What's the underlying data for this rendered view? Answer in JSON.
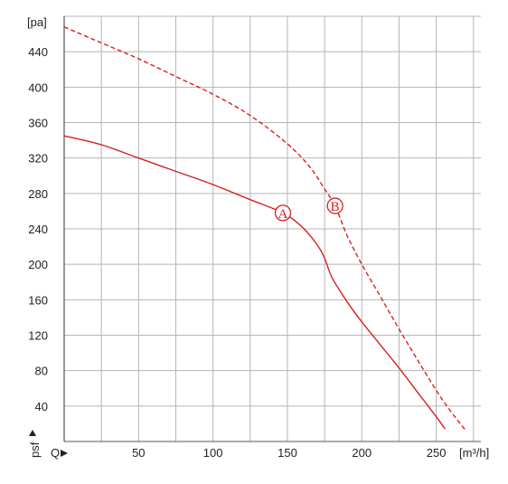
{
  "chart_data": {
    "type": "line",
    "y_unit": "[pa]",
    "x_unit": "[m³/h]",
    "y_axis_symbol": "psf",
    "x_axis_symbol": "Q",
    "xlim": [
      0,
      280
    ],
    "ylim": [
      0,
      480
    ],
    "x_ticks": [
      50,
      100,
      150,
      200,
      250
    ],
    "y_ticks": [
      40,
      80,
      120,
      160,
      200,
      240,
      280,
      320,
      360,
      400,
      440
    ],
    "x_grid": [
      0,
      25,
      50,
      75,
      100,
      125,
      150,
      175,
      200,
      225,
      250,
      275
    ],
    "y_grid": [
      40,
      80,
      120,
      160,
      200,
      240,
      280,
      320,
      360,
      400,
      440,
      480
    ],
    "grid": true,
    "curve_color": "#d62020",
    "series": [
      {
        "name": "A",
        "style": "solid",
        "marker_at": [
          147,
          258
        ],
        "points": [
          [
            0,
            345
          ],
          [
            25,
            335
          ],
          [
            50,
            320
          ],
          [
            75,
            305
          ],
          [
            100,
            290
          ],
          [
            125,
            273
          ],
          [
            147,
            258
          ],
          [
            160,
            242
          ],
          [
            170,
            222
          ],
          [
            175,
            207
          ],
          [
            180,
            185
          ],
          [
            190,
            158
          ],
          [
            200,
            135
          ],
          [
            212,
            110
          ],
          [
            225,
            83
          ],
          [
            240,
            50
          ],
          [
            250,
            28
          ],
          [
            256,
            14
          ]
        ]
      },
      {
        "name": "B",
        "style": "dashed",
        "marker_at": [
          182,
          266
        ],
        "points": [
          [
            0,
            468
          ],
          [
            25,
            450
          ],
          [
            50,
            432
          ],
          [
            75,
            412
          ],
          [
            100,
            392
          ],
          [
            125,
            368
          ],
          [
            150,
            336
          ],
          [
            165,
            310
          ],
          [
            175,
            285
          ],
          [
            182,
            266
          ],
          [
            190,
            233
          ],
          [
            200,
            200
          ],
          [
            212,
            165
          ],
          [
            225,
            127
          ],
          [
            240,
            85
          ],
          [
            255,
            45
          ],
          [
            270,
            12
          ]
        ]
      }
    ]
  }
}
